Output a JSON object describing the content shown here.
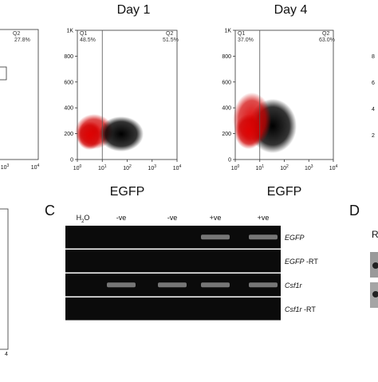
{
  "left_partial": {
    "q2": "Q2",
    "q2_pct": "27.8%",
    "xtick_base": "10",
    "xtick_exps": [
      "3",
      "4"
    ],
    "bottom_tick": "4"
  },
  "flow_panels": [
    {
      "title": "Day 1",
      "q1": "Q1",
      "q1_pct": "48.5%",
      "q2": "Q2",
      "q2_pct": "51.5%",
      "yticks": [
        "1K",
        "800",
        "600",
        "400",
        "200",
        "0"
      ],
      "xtick_base": "10",
      "xtick_exps": [
        "0",
        "1",
        "2",
        "3",
        "4"
      ],
      "xlabel": "EGFP"
    },
    {
      "title": "Day 4",
      "q1": "Q1",
      "q1_pct": "37.0%",
      "q2": "Q2",
      "q2_pct": "63.0%",
      "yticks": [
        "1K",
        "800",
        "600",
        "400",
        "200",
        "0"
      ],
      "xtick_base": "10",
      "xtick_exps": [
        "0",
        "1",
        "2",
        "3",
        "4"
      ],
      "xlabel": "EGFP"
    }
  ],
  "right_partial": {
    "yticks": [
      "8",
      "6",
      "4",
      "2"
    ]
  },
  "panel_c": {
    "letter": "C",
    "lanes": [
      {
        "main": "H",
        "sub": "2",
        "rest": "O"
      },
      {
        "main": "-ve"
      },
      {
        "main": "-ve"
      },
      {
        "main": "+ve"
      },
      {
        "main": "+ve"
      }
    ],
    "rows": [
      {
        "gene": "EGFP"
      },
      {
        "gene": "EGFP",
        "suffix": " -RT"
      },
      {
        "gene": "Csf1r"
      },
      {
        "gene": "Csf1r",
        "suffix": " -RT"
      }
    ]
  },
  "panel_d": {
    "letter": "D",
    "partial": "R"
  }
}
